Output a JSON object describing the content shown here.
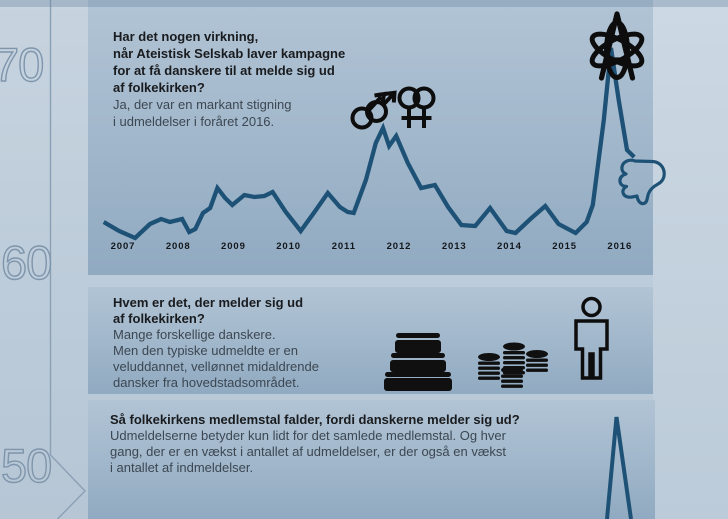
{
  "page": {
    "language": "da",
    "bg_color": "#bdccda",
    "panel_color_top": "#b1c4d5",
    "panel_color_bottom": "#90aac1",
    "line_color": "#1e5176",
    "icon_color": "#0d0d0d",
    "timeline_color": "#8ba0b5"
  },
  "timeline": {
    "labels": [
      "70",
      "60",
      "50"
    ]
  },
  "sections": [
    {
      "question": "Har det nogen virkning,\nnår Ateistisk Selskab laver kampagne\nfor at få danskere til at melde sig ud\naf folkekirken?",
      "answer": "Ja, der var en markant stigning\ni udmeldelser i foråret 2016."
    },
    {
      "question": "Hvem er det, der melder sig ud\naf folkekirken?",
      "answer": "Mange forskellige danskere.\nMen den typiske udmeldte er en\nveluddannet, vellønnet midaldrende\ndansker fra hovedstadsområdet."
    },
    {
      "question": "Så folkekirkens medlemstal falder, fordi danskerne melder sig ud?",
      "answer": "Udmeldelserne betyder kun lidt for det samlede medlemstal. Og hver\ngang, der er en vækst i antallet af udmeldelser, er der også en vækst\ni antallet af indmeldelser."
    }
  ],
  "chart_data": {
    "type": "line",
    "title": "",
    "xlabel": "",
    "ylabel": "",
    "y_axis_visible": false,
    "grid": false,
    "legend": false,
    "line_color": "#1e5176",
    "categories": [
      "2007",
      "2008",
      "2009",
      "2010",
      "2011",
      "2012",
      "2013",
      "2014",
      "2015",
      "2016"
    ],
    "x_range": [
      2006.6,
      2016.3
    ],
    "ylim": [
      0,
      200
    ],
    "x": [
      2006.65,
      2006.93,
      2007.22,
      2007.49,
      2007.69,
      2007.85,
      2008.07,
      2008.2,
      2008.31,
      2008.45,
      2008.58,
      2008.71,
      2008.85,
      2008.98,
      2009.2,
      2009.38,
      2009.56,
      2009.71,
      2009.95,
      2010.22,
      2010.47,
      2010.71,
      2010.93,
      2011.07,
      2011.18,
      2011.4,
      2011.58,
      2011.71,
      2011.82,
      2011.95,
      2012.16,
      2012.4,
      2012.65,
      2012.89,
      2013.13,
      2013.38,
      2013.65,
      2013.95,
      2014.11,
      2014.38,
      2014.65,
      2014.89,
      2015.13,
      2015.2,
      2015.4,
      2015.51,
      2015.71,
      2015.84,
      2015.98,
      2016.13,
      2016.26
    ],
    "values": [
      23,
      14,
      7,
      21,
      26,
      23,
      26,
      13,
      16,
      32,
      37,
      57,
      47,
      40,
      50,
      48,
      49,
      53,
      33,
      14,
      33,
      52,
      38,
      33,
      32,
      65,
      102,
      117,
      99,
      109,
      82,
      57,
      60,
      38,
      20,
      19,
      37,
      14,
      12,
      26,
      39,
      21,
      14,
      12,
      23,
      40,
      125,
      197,
      145,
      95,
      88
    ]
  },
  "icons": {
    "double_mars": "double-mars-icon",
    "double_venus": "double-venus-icon",
    "atheist_atom": "atheist-atom-icon",
    "thumbs_down": "thumbs-down-icon",
    "books": "books-icon",
    "coin_stacks": "coin-stacks-icon",
    "person": "person-icon",
    "membership_spike": "membership-spike-graphic",
    "timeline_chevron": "timeline-chevron"
  }
}
